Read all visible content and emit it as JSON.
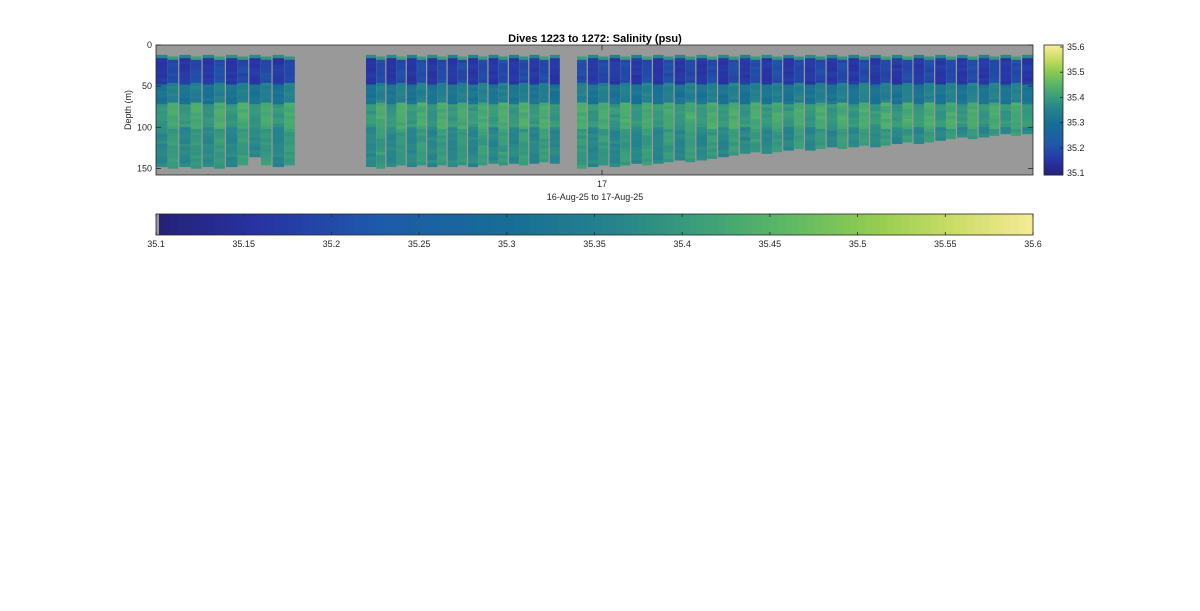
{
  "chart_data": {
    "type": "heatmap",
    "title": "Dives 1223 to 1272: Salinity (psu)",
    "xlabel": "16-Aug-25 to 17-Aug-25",
    "ylabel": "Depth (m)",
    "x_tick_labels": [
      "17"
    ],
    "y_ticks": [
      0,
      50,
      100,
      150
    ],
    "ylim": [
      0,
      158
    ],
    "variable": "Salinity (psu)",
    "color_range": [
      35.1,
      35.6
    ],
    "colorbar_right_ticks": [
      "35.6",
      "35.5",
      "35.4",
      "35.3",
      "35.2",
      "35.1"
    ],
    "colorbar_bottom_ticks": [
      "35.1",
      "35.15",
      "35.2",
      "35.25",
      "35.3",
      "35.35",
      "35.4",
      "35.45",
      "35.5",
      "35.55",
      "35.6"
    ],
    "colormap": "parula",
    "missing_color": "#999999",
    "dives": {
      "first": 1223,
      "last": 1272
    },
    "profile_max_depth_m": [
      148,
      148,
      147,
      147,
      148,
      148,
      147,
      146,
      133,
      146,
      146,
      146,
      147,
      147,
      147,
      146,
      146,
      146,
      146,
      146,
      146,
      145,
      145,
      145,
      144,
      144,
      143,
      143,
      143,
      142,
      142,
      147,
      147,
      146,
      146,
      145,
      144,
      143,
      143,
      142,
      140,
      139,
      138,
      136,
      135,
      133,
      132,
      130,
      129,
      128,
      127,
      126,
      125,
      125,
      124,
      123,
      122,
      121,
      121,
      120,
      119,
      118,
      117,
      116,
      115,
      114,
      112,
      111,
      110,
      109,
      108,
      107,
      106
    ],
    "profile_gaps": [
      "between profile 12 and 13 (no data)",
      "between profile 31 and 32 (no data)"
    ],
    "salinity_structure": [
      {
        "depth_range_m": [
          15,
          45
        ],
        "salinity_psu": 35.18
      },
      {
        "depth_range_m": [
          45,
          70
        ],
        "salinity_psu": 35.33
      },
      {
        "depth_range_m": [
          70,
          100
        ],
        "salinity_psu": 35.41
      },
      {
        "depth_range_m": [
          100,
          150
        ],
        "salinity_psu": 35.38
      }
    ]
  }
}
